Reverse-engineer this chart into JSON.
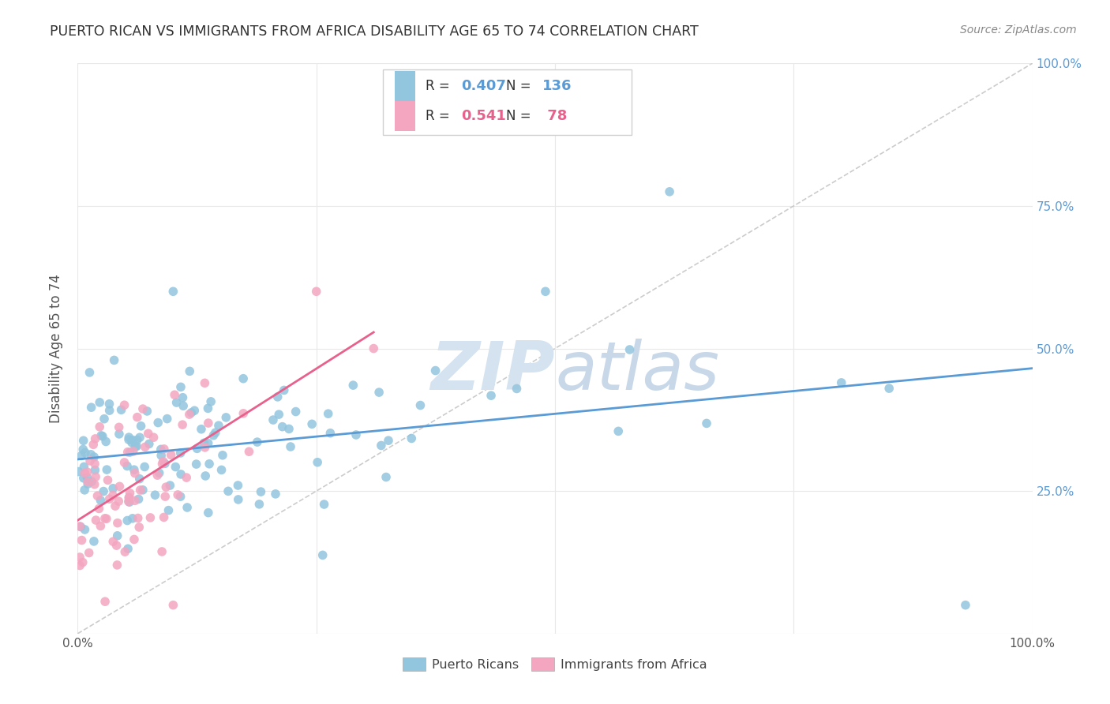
{
  "title": "PUERTO RICAN VS IMMIGRANTS FROM AFRICA DISABILITY AGE 65 TO 74 CORRELATION CHART",
  "source": "Source: ZipAtlas.com",
  "ylabel": "Disability Age 65 to 74",
  "legend_blue_R": "0.407",
  "legend_blue_N": "136",
  "legend_pink_R": "0.541",
  "legend_pink_N": "78",
  "legend_label_blue": "Puerto Ricans",
  "legend_label_pink": "Immigrants from Africa",
  "blue_color": "#92c5de",
  "pink_color": "#f4a6c0",
  "blue_line_color": "#5b9bd5",
  "pink_line_color": "#e8618c",
  "diag_line_color": "#c0c0c0",
  "legend_text_color": "#5b9bd5",
  "watermark_color": "#d5e3f0",
  "grid_color": "#e8e8e8",
  "tick_color": "#555555",
  "right_tick_color": "#5b9bd5",
  "title_color": "#333333",
  "source_color": "#888888"
}
